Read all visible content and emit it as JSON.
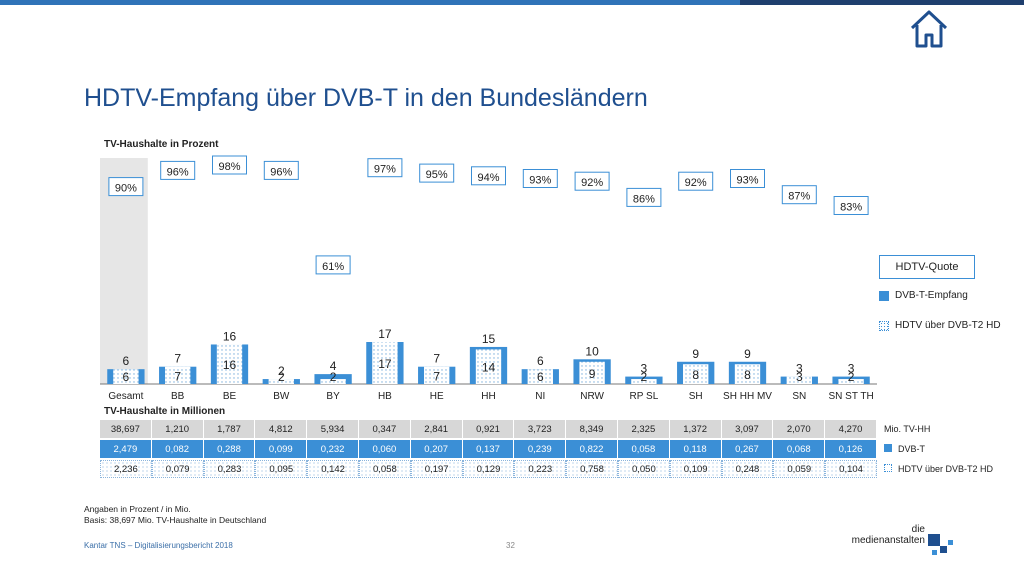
{
  "title": "HDTV-Empfang über DVB-T in den Bundesländern",
  "chart_data": {
    "type": "bar",
    "title": "HDTV-Empfang über DVB-T in den Bundesländern",
    "ylabel": "TV-Haushalte in Prozent",
    "categories": [
      "Gesamt",
      "BB",
      "BE",
      "BW",
      "BY",
      "HB",
      "HE",
      "HH",
      "NI",
      "NRW",
      "RP SL",
      "SH",
      "SH HH MV",
      "SN",
      "SN ST TH"
    ],
    "series": [
      {
        "name": "DVB-T-Empfang",
        "values": [
          6,
          7,
          16,
          2,
          4,
          17,
          7,
          15,
          6,
          10,
          3,
          9,
          9,
          3,
          3
        ]
      },
      {
        "name": "HDTV über DVB-T2 HD",
        "values": [
          6,
          7,
          16,
          2,
          2,
          17,
          7,
          14,
          6,
          9,
          2,
          8,
          8,
          3,
          2
        ]
      },
      {
        "name": "HDTV-Quote",
        "values": [
          "90%",
          "96%",
          "98%",
          "96%",
          "61%",
          "97%",
          "95%",
          "94%",
          "93%",
          "92%",
          "86%",
          "92%",
          "93%",
          "87%",
          "83%"
        ]
      }
    ],
    "ylim": [
      0,
      17
    ],
    "legend": "right"
  },
  "legend": {
    "quote": "HDTV-Quote",
    "dvbt": "DVB-T-Empfang",
    "hdtv": "HDTV über DVB-T2 HD"
  },
  "table": {
    "subtitle": "TV-Haushalte in Millionen",
    "rows": [
      {
        "label": "Mio. TV-HH",
        "values": [
          "38,697",
          "1,210",
          "1,787",
          "4,812",
          "5,934",
          "0,347",
          "2,841",
          "0,921",
          "3,723",
          "8,349",
          "2,325",
          "1,372",
          "3,097",
          "2,070",
          "4,270"
        ]
      },
      {
        "label": "DVB-T",
        "values": [
          "2,479",
          "0,082",
          "0,288",
          "0,099",
          "0,232",
          "0,060",
          "0,207",
          "0,137",
          "0,239",
          "0,822",
          "0,058",
          "0,118",
          "0,267",
          "0,068",
          "0,126"
        ]
      },
      {
        "label": "HDTV über DVB-T2 HD",
        "values": [
          "2,236",
          "0,079",
          "0,283",
          "0,095",
          "0,142",
          "0,058",
          "0,197",
          "0,129",
          "0,223",
          "0,758",
          "0,050",
          "0,109",
          "0,248",
          "0,059",
          "0,104"
        ]
      }
    ]
  },
  "notes": {
    "line1": "Angaben in Prozent / in Mio.",
    "line2": "Basis: 38,697 Mio. TV-Haushalte in Deutschland"
  },
  "footer": {
    "source": "Kantar TNS – Digitalisierungsbericht 2018",
    "page": "32",
    "logo_line1": "die",
    "logo_line2": "medienanstalten"
  },
  "colors": {
    "accent": "#3b8fd6",
    "title": "#1f4f8f",
    "gesamt_bg": "#e6e6e6"
  }
}
